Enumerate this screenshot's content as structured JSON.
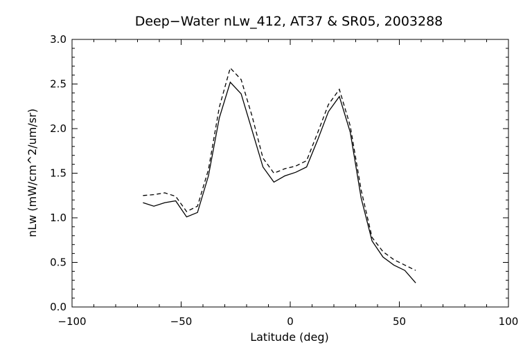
{
  "chart_data": {
    "type": "line",
    "title": "Deep−Water nLw_412, AT37 & SR05, 2003288",
    "xlabel": "Latitude (deg)",
    "ylabel": "nLw (mW/cm^2/um/sr)",
    "xlim": [
      -100,
      100
    ],
    "ylim": [
      0.0,
      3.0
    ],
    "x_ticks": [
      -100,
      -50,
      0,
      50,
      100
    ],
    "x_tick_labels": [
      "−100",
      "−50",
      "0",
      "50",
      "100"
    ],
    "y_ticks": [
      0.0,
      0.5,
      1.0,
      1.5,
      2.0,
      2.5,
      3.0
    ],
    "y_tick_labels": [
      "0.0",
      "0.5",
      "1.0",
      "1.5",
      "2.0",
      "2.5",
      "3.0"
    ],
    "grid": false,
    "series": [
      {
        "style": "solid",
        "color": "#000000",
        "x": [
          -67.5,
          -62.5,
          -57.5,
          -52.5,
          -47.5,
          -42.5,
          -37.5,
          -32.5,
          -27.5,
          -22.5,
          -17.5,
          -12.5,
          -7.5,
          -2.5,
          2.5,
          7.5,
          12.5,
          17.5,
          22.5,
          27.5,
          32.5,
          37.5,
          42.5,
          47.5,
          52.5,
          57.5
        ],
        "y": [
          1.17,
          1.13,
          1.17,
          1.19,
          1.01,
          1.06,
          1.47,
          2.12,
          2.52,
          2.39,
          1.98,
          1.57,
          1.4,
          1.47,
          1.51,
          1.57,
          1.87,
          2.19,
          2.36,
          1.96,
          1.22,
          0.74,
          0.56,
          0.47,
          0.41,
          0.27
        ]
      },
      {
        "style": "dashed",
        "color": "#000000",
        "x": [
          -67.5,
          -62.5,
          -57.5,
          -52.5,
          -47.5,
          -42.5,
          -37.5,
          -32.5,
          -27.5,
          -22.5,
          -17.5,
          -12.5,
          -7.5,
          -2.5,
          2.5,
          7.5,
          12.5,
          17.5,
          22.5,
          27.5,
          32.5,
          37.5,
          42.5,
          47.5,
          52.5,
          57.5
        ],
        "y": [
          1.25,
          1.26,
          1.28,
          1.24,
          1.07,
          1.13,
          1.54,
          2.24,
          2.68,
          2.55,
          2.14,
          1.67,
          1.5,
          1.55,
          1.58,
          1.64,
          1.95,
          2.27,
          2.44,
          2.03,
          1.31,
          0.78,
          0.62,
          0.53,
          0.47,
          0.41
        ]
      }
    ]
  }
}
